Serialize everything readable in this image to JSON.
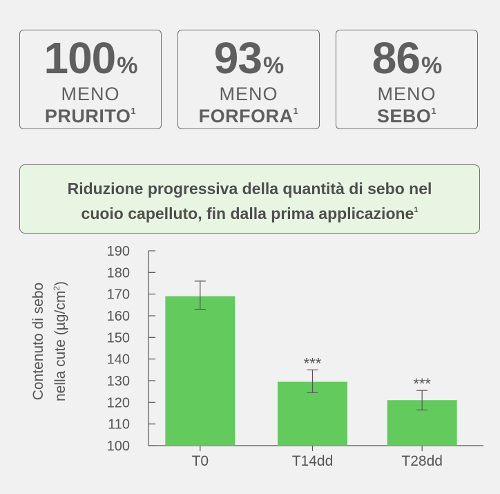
{
  "stats": [
    {
      "value": "100",
      "unit": "%",
      "line1": "MENO",
      "line2": "PRURITO",
      "note": "1"
    },
    {
      "value": "93",
      "unit": "%",
      "line1": "MENO",
      "line2": "FORFORA",
      "note": "1"
    },
    {
      "value": "86",
      "unit": "%",
      "line1": "MENO",
      "line2": "SEBO",
      "note": "1"
    }
  ],
  "banner": {
    "line1": "Riduzione progressiva della quantità di sebo nel",
    "line2": "cuoio capelluto, fin dalla prima applicazione",
    "note": "1"
  },
  "ylabel": {
    "line1": "Contenuto di sebo",
    "line2_prefix": "nella cute (µg/cm",
    "line2_sup": "2",
    "line2_suffix": ")"
  },
  "colors": {
    "bar": "#63cb5e",
    "axis": "#555555",
    "background": "#f1f1f1",
    "banner": "#e8f5e3"
  },
  "chart_data": {
    "type": "bar",
    "categories": [
      "T0",
      "T14dd",
      "T28dd"
    ],
    "values": [
      169,
      129.5,
      121
    ],
    "error_low": [
      163,
      124.5,
      116.5
    ],
    "error_high": [
      176,
      135,
      125.5
    ],
    "significance": [
      "",
      "***",
      "***"
    ],
    "yticks": [
      100,
      110,
      120,
      130,
      140,
      150,
      160,
      170,
      180,
      190
    ],
    "ylim": [
      100,
      190
    ],
    "xlabel": "",
    "grid": false
  }
}
